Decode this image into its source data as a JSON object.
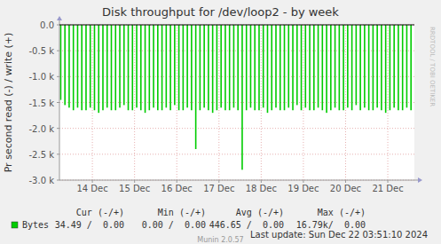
{
  "chart_data": {
    "type": "bar",
    "title": "Disk throughput for /dev/loop2 - by week",
    "y_label": "Pr second read (-) / write (+)",
    "x": [
      13.75,
      13.85,
      13.95,
      14.05,
      14.15,
      14.25,
      14.35,
      14.45,
      14.55,
      14.65,
      14.75,
      14.85,
      14.95,
      15.05,
      15.15,
      15.25,
      15.35,
      15.45,
      15.55,
      15.65,
      15.75,
      15.85,
      15.95,
      16.05,
      16.15,
      16.25,
      16.35,
      16.45,
      16.55,
      16.65,
      16.75,
      16.85,
      16.95,
      17.05,
      17.15,
      17.25,
      17.35,
      17.45,
      17.55,
      17.65,
      17.75,
      17.85,
      17.95,
      18.05,
      18.15,
      18.25,
      18.35,
      18.45,
      18.55,
      18.65,
      18.75,
      18.85,
      18.95,
      19.05,
      19.15,
      19.25,
      19.35,
      19.45,
      19.55,
      19.65,
      19.75,
      19.85,
      19.95,
      20.05,
      20.15,
      20.25,
      20.35,
      20.45,
      20.55,
      20.65,
      20.75,
      20.85,
      20.95,
      21.05,
      21.15,
      21.25,
      21.35,
      21.45,
      21.55,
      21.65,
      21.75,
      21.85,
      21.95,
      22.05
    ],
    "series": [
      {
        "name": "Bytes",
        "color": "#00cc00",
        "values": [
          -1450,
          -1550,
          -1600,
          -1650,
          -1600,
          -1650,
          -1650,
          -1600,
          -1650,
          -1700,
          -1650,
          -1600,
          -1650,
          -1650,
          -1600,
          -1550,
          -1650,
          -1650,
          -1600,
          -1650,
          -1700,
          -1650,
          -1600,
          -1650,
          -1650,
          -1600,
          -1650,
          -1550,
          -1650,
          -1650,
          -1600,
          -1650,
          -2400,
          -1650,
          -1600,
          -1650,
          -1700,
          -1650,
          -1600,
          -1650,
          -1650,
          -1600,
          -1650,
          -2800,
          -1650,
          -1600,
          -1650,
          -1650,
          -1600,
          -1700,
          -1650,
          -1600,
          -1650,
          -1650,
          -1600,
          -1650,
          -1550,
          -1650,
          -1600,
          -1650,
          -1650,
          -1600,
          -1650,
          -1700,
          -1650,
          -1600,
          -1650,
          -1650,
          -1600,
          -1650,
          -1550,
          -1650,
          -1600,
          -1650,
          -1650,
          -1600,
          -1650,
          -1700,
          -1650,
          -1600,
          -1650,
          -1650,
          -1600,
          -1650
        ]
      }
    ],
    "xlim": [
      13.72,
      22.13
    ],
    "xticks": [
      {
        "value": 14.5,
        "label": "14 Dec"
      },
      {
        "value": 15.5,
        "label": "15 Dec"
      },
      {
        "value": 16.5,
        "label": "16 Dec"
      },
      {
        "value": 17.5,
        "label": "17 Dec"
      },
      {
        "value": 18.5,
        "label": "18 Dec"
      },
      {
        "value": 19.5,
        "label": "19 Dec"
      },
      {
        "value": 20.5,
        "label": "20 Dec"
      },
      {
        "value": 21.5,
        "label": "21 Dec"
      }
    ],
    "ylim": [
      -3000,
      0
    ],
    "yticks": [
      {
        "value": 0,
        "label": "0.0"
      },
      {
        "value": -500,
        "label": "-0.5 k"
      },
      {
        "value": -1000,
        "label": "-1.0 k"
      },
      {
        "value": -1500,
        "label": "-1.5 k"
      },
      {
        "value": -2000,
        "label": "-2.0 k"
      },
      {
        "value": -2500,
        "label": "-2.5 k"
      },
      {
        "value": -3000,
        "label": "-3.0 k"
      }
    ],
    "grid": true,
    "legend_table": {
      "columns": [
        "Cur (-/+)",
        "Min (-/+)",
        "Avg (-/+)",
        "Max (-/+)"
      ],
      "row": [
        "34.49 /  0.00",
        "0.00 /  0.00",
        "446.65 /  0.00",
        "16.79k/  0.00"
      ]
    },
    "annotations": [
      "Last update: Sun Dec 22 03:51:10 2024",
      "Munin 2.0.57",
      "RRDTOOL / TOBI OETIKER"
    ]
  }
}
